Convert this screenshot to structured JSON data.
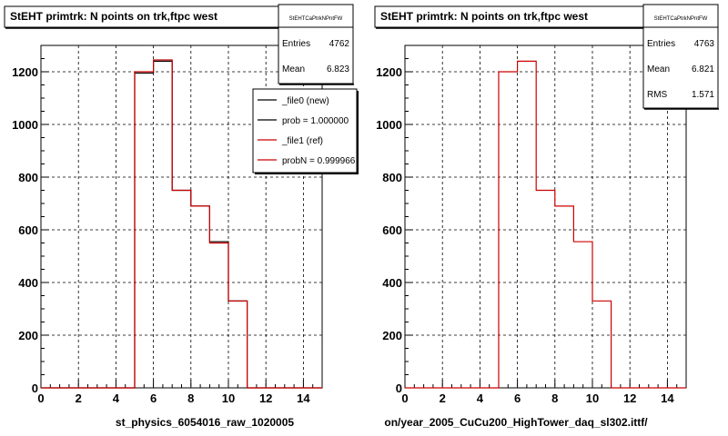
{
  "chart_data": [
    {
      "type": "step-histogram",
      "title": "StEHT primtrk: N points on trk,ftpc west",
      "xlabel": "st_physics_6054016_raw_1020005",
      "xlim": [
        0,
        15
      ],
      "ylim": [
        0,
        1300
      ],
      "xticks": [
        "0",
        "2",
        "4",
        "6",
        "8",
        "10",
        "12",
        "14"
      ],
      "yticks": [
        "0",
        "200",
        "400",
        "600",
        "800",
        "1000",
        "1200"
      ],
      "grid": true,
      "bin_edges": [
        0,
        1,
        2,
        3,
        4,
        5,
        6,
        7,
        8,
        9,
        10,
        11,
        12,
        13,
        14,
        15
      ],
      "series": [
        {
          "name": "_file0 (new)",
          "color": "#000000",
          "values": [
            0,
            0,
            0,
            0,
            0,
            1195,
            1240,
            750,
            690,
            555,
            330,
            0,
            0,
            0,
            0
          ]
        },
        {
          "name": "_file1 (ref)",
          "color": "#cc0000",
          "values": [
            0,
            0,
            0,
            0,
            0,
            1200,
            1245,
            750,
            690,
            550,
            330,
            0,
            0,
            0,
            0
          ]
        }
      ],
      "stats": {
        "header": "StEHTCaPtrkNPntFW",
        "rows": [
          {
            "label": "Entries",
            "value": "4762"
          },
          {
            "label": "Mean",
            "value": "6.823"
          }
        ]
      },
      "legend": {
        "placement": "top-right",
        "entries": [
          {
            "label": "_file0 (new)",
            "color": "#000000"
          },
          {
            "label": "prob = 1.000000",
            "color": "#000000"
          },
          {
            "label": "_file1 (ref)",
            "color": "#cc0000"
          },
          {
            "label": "probN = 0.999966",
            "color": "#cc0000"
          }
        ]
      }
    },
    {
      "type": "step-histogram",
      "title": "StEHT primtrk: N points on trk,ftpc west",
      "xlabel": "on/year_2005_CuCu200_HighTower_daq_sl302.ittf/",
      "xlim": [
        0,
        15
      ],
      "ylim": [
        0,
        1300
      ],
      "xticks": [
        "0",
        "2",
        "4",
        "6",
        "8",
        "10",
        "12",
        "14"
      ],
      "yticks": [
        "0",
        "200",
        "400",
        "600",
        "800",
        "1000",
        "1200"
      ],
      "grid": true,
      "bin_edges": [
        0,
        1,
        2,
        3,
        4,
        5,
        6,
        7,
        8,
        9,
        10,
        11,
        12,
        13,
        14,
        15
      ],
      "series": [
        {
          "name": "",
          "color": "#cc0000",
          "values": [
            0,
            0,
            0,
            0,
            0,
            1200,
            1240,
            750,
            690,
            555,
            330,
            0,
            0,
            0,
            0
          ]
        }
      ],
      "stats": {
        "header": "StEHTCaPtrkNPntFW",
        "rows": [
          {
            "label": "Entries",
            "value": "4763"
          },
          {
            "label": "Mean",
            "value": "6.821"
          },
          {
            "label": "RMS",
            "value": "1.571"
          }
        ]
      }
    }
  ]
}
